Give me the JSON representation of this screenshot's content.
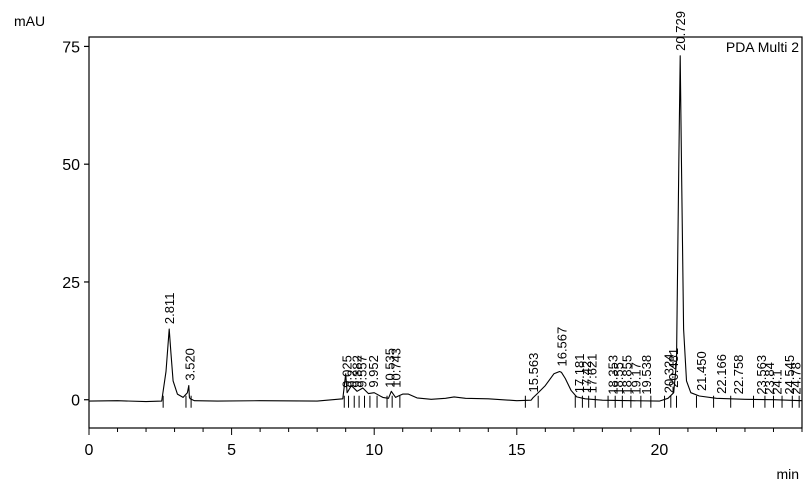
{
  "chart_data": {
    "type": "line",
    "title": "",
    "ylabel": "mAU",
    "xlabel": "min",
    "channel_label": "PDA Multi 2",
    "xlim": [
      0,
      25
    ],
    "ylim": [
      -6,
      77
    ],
    "x_ticks": [
      0,
      5,
      10,
      15,
      20
    ],
    "x_tick_labels": [
      "0",
      "5",
      "10",
      "15",
      "20"
    ],
    "y_ticks": [
      0,
      25,
      50,
      75
    ],
    "y_tick_labels": [
      "0",
      "25",
      "50",
      "75"
    ],
    "grid": false,
    "legend": "none",
    "series": [
      {
        "x": [
          0,
          1,
          2,
          2.55,
          2.7,
          2.811,
          2.87,
          2.95,
          3.1,
          3.3,
          3.45,
          3.5,
          3.52,
          3.55,
          3.7,
          4.5,
          6,
          8,
          8.9,
          9.0,
          9.05,
          9.2,
          9.4,
          9.6,
          9.8,
          10.0,
          10.3,
          10.5,
          10.6,
          10.75,
          10.85,
          11.0,
          11.2,
          11.5,
          12,
          12.5,
          12.8,
          13.2,
          14,
          15,
          15.5,
          15.563,
          15.7,
          16.0,
          16.3,
          16.5,
          16.567,
          16.7,
          16.9,
          17.1,
          17.4,
          18.0,
          19.0,
          20.0,
          20.3,
          20.5,
          20.6,
          20.68,
          20.729,
          20.78,
          20.85,
          20.95,
          21.1,
          21.4,
          22,
          23,
          24,
          25
        ],
        "y": [
          -0.3,
          -0.2,
          -0.4,
          -0.3,
          6,
          15,
          10,
          4,
          1.2,
          0.5,
          1.5,
          3,
          0.5,
          0.2,
          -0.2,
          -0.3,
          -0.2,
          -0.3,
          0.2,
          5.5,
          1.5,
          3,
          1.8,
          2.5,
          1.3,
          1.5,
          0.5,
          0.3,
          1.8,
          0.5,
          0.8,
          1.2,
          1.2,
          0.4,
          0.1,
          0.3,
          0.6,
          0.3,
          0.2,
          -0.2,
          -0.1,
          0.4,
          1.2,
          3,
          5.5,
          6,
          5.8,
          4.5,
          2,
          0.6,
          0.2,
          -0.1,
          -0.2,
          -0.3,
          0.3,
          1.5,
          8,
          50,
          73,
          48,
          15,
          4,
          1.5,
          0.8,
          0.3,
          0.1,
          0,
          -0.2
        ]
      }
    ],
    "peaks": [
      {
        "rt": 2.811,
        "label": "2.811",
        "height": 15
      },
      {
        "rt": 3.52,
        "label": "3.520",
        "height": 3
      },
      {
        "rt": 9.025,
        "label": "9.025",
        "height": 1.5
      },
      {
        "rt": 9.2,
        "label": "9.2",
        "height": 1.5
      },
      {
        "rt": 9.382,
        "label": "9.382",
        "height": 1.5
      },
      {
        "rt": 9.557,
        "label": "9.557",
        "height": 1.5
      },
      {
        "rt": 9.952,
        "label": "9.952",
        "height": 1.5
      },
      {
        "rt": 10.535,
        "label": "10.535",
        "height": 1.5
      },
      {
        "rt": 10.743,
        "label": "10.743",
        "height": 1.5
      },
      {
        "rt": 15.563,
        "label": "15.563",
        "height": 0.5
      },
      {
        "rt": 16.567,
        "label": "16.567",
        "height": 6
      },
      {
        "rt": 17.181,
        "label": "17.181",
        "height": 0.3
      },
      {
        "rt": 17.42,
        "label": "17.42",
        "height": 0.3
      },
      {
        "rt": 17.621,
        "label": "17.621",
        "height": 0.3
      },
      {
        "rt": 18.353,
        "label": "18.353",
        "height": 0
      },
      {
        "rt": 18.55,
        "label": "18.55",
        "height": 0
      },
      {
        "rt": 18.855,
        "label": "18.855",
        "height": 0
      },
      {
        "rt": 19.17,
        "label": "19.17",
        "height": 0
      },
      {
        "rt": 19.538,
        "label": "19.538",
        "height": 0
      },
      {
        "rt": 20.324,
        "label": "20.324",
        "height": 0.3
      },
      {
        "rt": 20.481,
        "label": "20.481",
        "height": 1.5
      },
      {
        "rt": 20.729,
        "label": "20.729",
        "height": 73
      },
      {
        "rt": 21.45,
        "label": "21.450",
        "height": 0.8
      },
      {
        "rt": 22.166,
        "label": "22.166",
        "height": 0.2
      },
      {
        "rt": 22.758,
        "label": "22.758",
        "height": 0.1
      },
      {
        "rt": 23.563,
        "label": "23.563",
        "height": 0
      },
      {
        "rt": 23.84,
        "label": "23.84",
        "height": 0
      },
      {
        "rt": 24.1,
        "label": "24.1",
        "height": 0
      },
      {
        "rt": 24.545,
        "label": "24.545",
        "height": 0
      },
      {
        "rt": 24.78,
        "label": "24.78",
        "height": 0
      }
    ],
    "integration_marks": [
      2.6,
      3.4,
      3.58,
      8.95,
      9.1,
      9.3,
      9.47,
      9.66,
      9.85,
      10.1,
      10.45,
      10.63,
      10.9,
      15.3,
      15.75,
      17.05,
      17.3,
      17.52,
      17.75,
      18.2,
      18.45,
      18.7,
      19.0,
      19.35,
      19.7,
      20.18,
      20.4,
      20.6,
      21.3,
      21.9,
      22.5,
      23.3,
      23.7,
      24.0,
      24.3,
      24.66,
      24.9
    ]
  }
}
